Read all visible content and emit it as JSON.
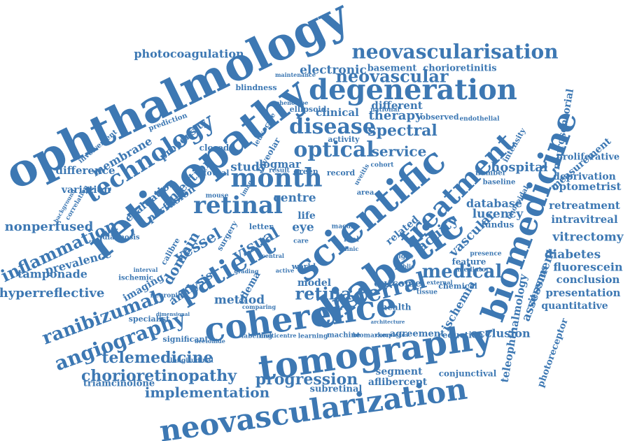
{
  "style": {
    "word_color": "#3d78b3",
    "background": "#ffffff"
  },
  "words": [
    "ophthalmology",
    "retinopathy",
    "technology",
    "neovascularisation",
    "photocoagulation",
    "degeneration",
    "neovascular",
    "electronic",
    "basement",
    "chorioretinitis",
    "disease",
    "optical",
    "month",
    "retinal",
    "spectral",
    "service",
    "therapy",
    "logmar",
    "clinical",
    "different",
    "study",
    "centre",
    "life",
    "eye",
    "visual",
    "patient",
    "vessel",
    "domain",
    "injection",
    "perfusion",
    "evaluation",
    "membrane",
    "propensity",
    "prediction",
    "closed",
    "variation",
    "difference",
    "involvement",
    "inflammation",
    "nonperfused",
    "prevalence",
    "tamponade",
    "hyperreflective",
    "ranibizumab",
    "imaging",
    "angiography",
    "analysis",
    "telemedicine",
    "chorioretinopathy",
    "implementation",
    "neovascularization",
    "coherence",
    "tomography",
    "progression",
    "segment",
    "aflibercept",
    "subretinal",
    "referral",
    "method",
    "retina",
    "outcome",
    "medical",
    "scientific",
    "diabetic",
    "treatment",
    "acuity",
    "vascular",
    "related",
    "biomedicine",
    "neurosensorial",
    "measurement",
    "proliferative",
    "deprivation",
    "optometrist",
    "retreatment",
    "intravitreal",
    "vitrectomy",
    "diabetes",
    "fluorescein",
    "conclusion",
    "presentation",
    "quantitative",
    "hospital",
    "database",
    "lucency",
    "fundus",
    "ischemia",
    "assessment",
    "vitreous",
    "teleophthalmology",
    "photoreceptor",
    "occlusion",
    "agreement",
    "reduction",
    "conjunctival",
    "significant",
    "specialist",
    "longitudinal",
    "triamcinolone",
    "acetonide",
    "labelling",
    "multicentre",
    "learning",
    "machine",
    "biomarker",
    "complexes",
    "edema",
    "model",
    "world",
    "letter",
    "surgery",
    "ischemic",
    "neuropilin",
    "diagnosis",
    "calibre",
    "maintenance",
    "blindness",
    "ellipsoid",
    "observed",
    "endothelial",
    "intensity",
    "activity",
    "foveolar",
    "green",
    "record",
    "foveal",
    "result",
    "interval",
    "feature",
    "mediator",
    "chemical",
    "tissue",
    "health",
    "sight",
    "public",
    "uveitis",
    "cohort",
    "national",
    "phenotype",
    "number",
    "baseline",
    "presence",
    "area",
    "choroidal",
    "real",
    "clinic",
    "grading",
    "central",
    "active",
    "macula",
    "dimensional",
    "correlation",
    "background",
    "mouse",
    "leukocyte",
    "care",
    "image",
    "comparing",
    "architecture",
    "external"
  ]
}
